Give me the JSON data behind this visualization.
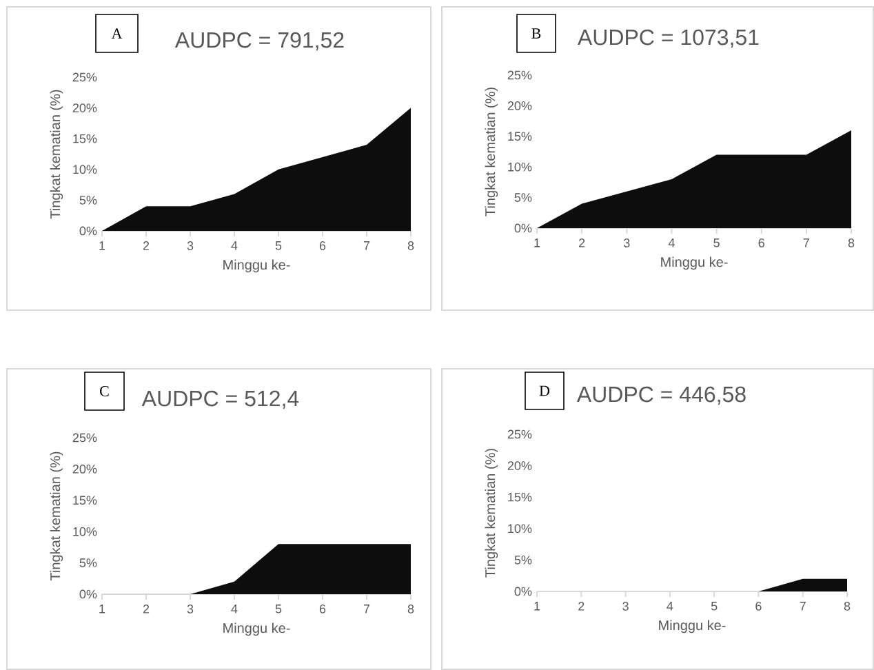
{
  "chart_data": [
    {
      "type": "area",
      "title": "AUDPC = 791,52",
      "annotations": [
        "A"
      ],
      "xlabel": "Minggu ke-",
      "ylabel": "Tingkat kematian (%)",
      "categories": [
        "1",
        "2",
        "3",
        "4",
        "5",
        "6",
        "7",
        "8"
      ],
      "color": "#0d0d0d",
      "values": [
        0,
        4,
        4,
        6,
        10,
        12,
        14,
        20
      ],
      "ylim": [
        0,
        25
      ],
      "yticks": [
        {
          "value": 0,
          "label": "0%"
        },
        {
          "value": 5,
          "label": "5%"
        },
        {
          "value": 10,
          "label": "10%"
        },
        {
          "value": 15,
          "label": "15%"
        },
        {
          "value": 20,
          "label": "20%"
        },
        {
          "value": 25,
          "label": "25%"
        }
      ]
    },
    {
      "type": "area",
      "title": "AUDPC = 1073,51",
      "annotations": [
        "B"
      ],
      "xlabel": "Minggu ke-",
      "ylabel": "Tingkat kematian (%)",
      "categories": [
        "1",
        "2",
        "3",
        "4",
        "5",
        "6",
        "7",
        "8"
      ],
      "color": "#0d0d0d",
      "values": [
        0,
        4,
        6,
        8,
        12,
        12,
        12,
        16
      ],
      "ylim": [
        0,
        25
      ],
      "yticks": [
        {
          "value": 0,
          "label": "0%"
        },
        {
          "value": 5,
          "label": "5%"
        },
        {
          "value": 10,
          "label": "10%"
        },
        {
          "value": 15,
          "label": "15%"
        },
        {
          "value": 20,
          "label": "20%"
        },
        {
          "value": 25,
          "label": "25%"
        }
      ]
    },
    {
      "type": "area",
      "title": "AUDPC = 512,4",
      "annotations": [
        "C"
      ],
      "xlabel": "Minggu ke-",
      "ylabel": "Tingkat kematian (%)",
      "categories": [
        "1",
        "2",
        "3",
        "4",
        "5",
        "6",
        "7",
        "8"
      ],
      "color": "#0d0d0d",
      "values": [
        0,
        0,
        0,
        2,
        8,
        8,
        8,
        8
      ],
      "ylim": [
        0,
        25
      ],
      "yticks": [
        {
          "value": 0,
          "label": "0%"
        },
        {
          "value": 5,
          "label": "5%"
        },
        {
          "value": 10,
          "label": "10%"
        },
        {
          "value": 15,
          "label": "15%"
        },
        {
          "value": 20,
          "label": "20%"
        },
        {
          "value": 25,
          "label": "25%"
        }
      ]
    },
    {
      "type": "area",
      "title": "AUDPC = 446,58",
      "annotations": [
        "D"
      ],
      "xlabel": "Minggu ke-",
      "ylabel": "Tingkat kematian (%)",
      "categories": [
        "1",
        "2",
        "3",
        "4",
        "5",
        "6",
        "7",
        "8"
      ],
      "color": "#0d0d0d",
      "values": [
        0,
        0,
        0,
        0,
        0,
        0,
        2,
        2
      ],
      "ylim": [
        0,
        25
      ],
      "yticks": [
        {
          "value": 0,
          "label": "0%"
        },
        {
          "value": 5,
          "label": "5%"
        },
        {
          "value": 10,
          "label": "10%"
        },
        {
          "value": 15,
          "label": "15%"
        },
        {
          "value": 20,
          "label": "20%"
        },
        {
          "value": 25,
          "label": "25%"
        }
      ]
    }
  ]
}
